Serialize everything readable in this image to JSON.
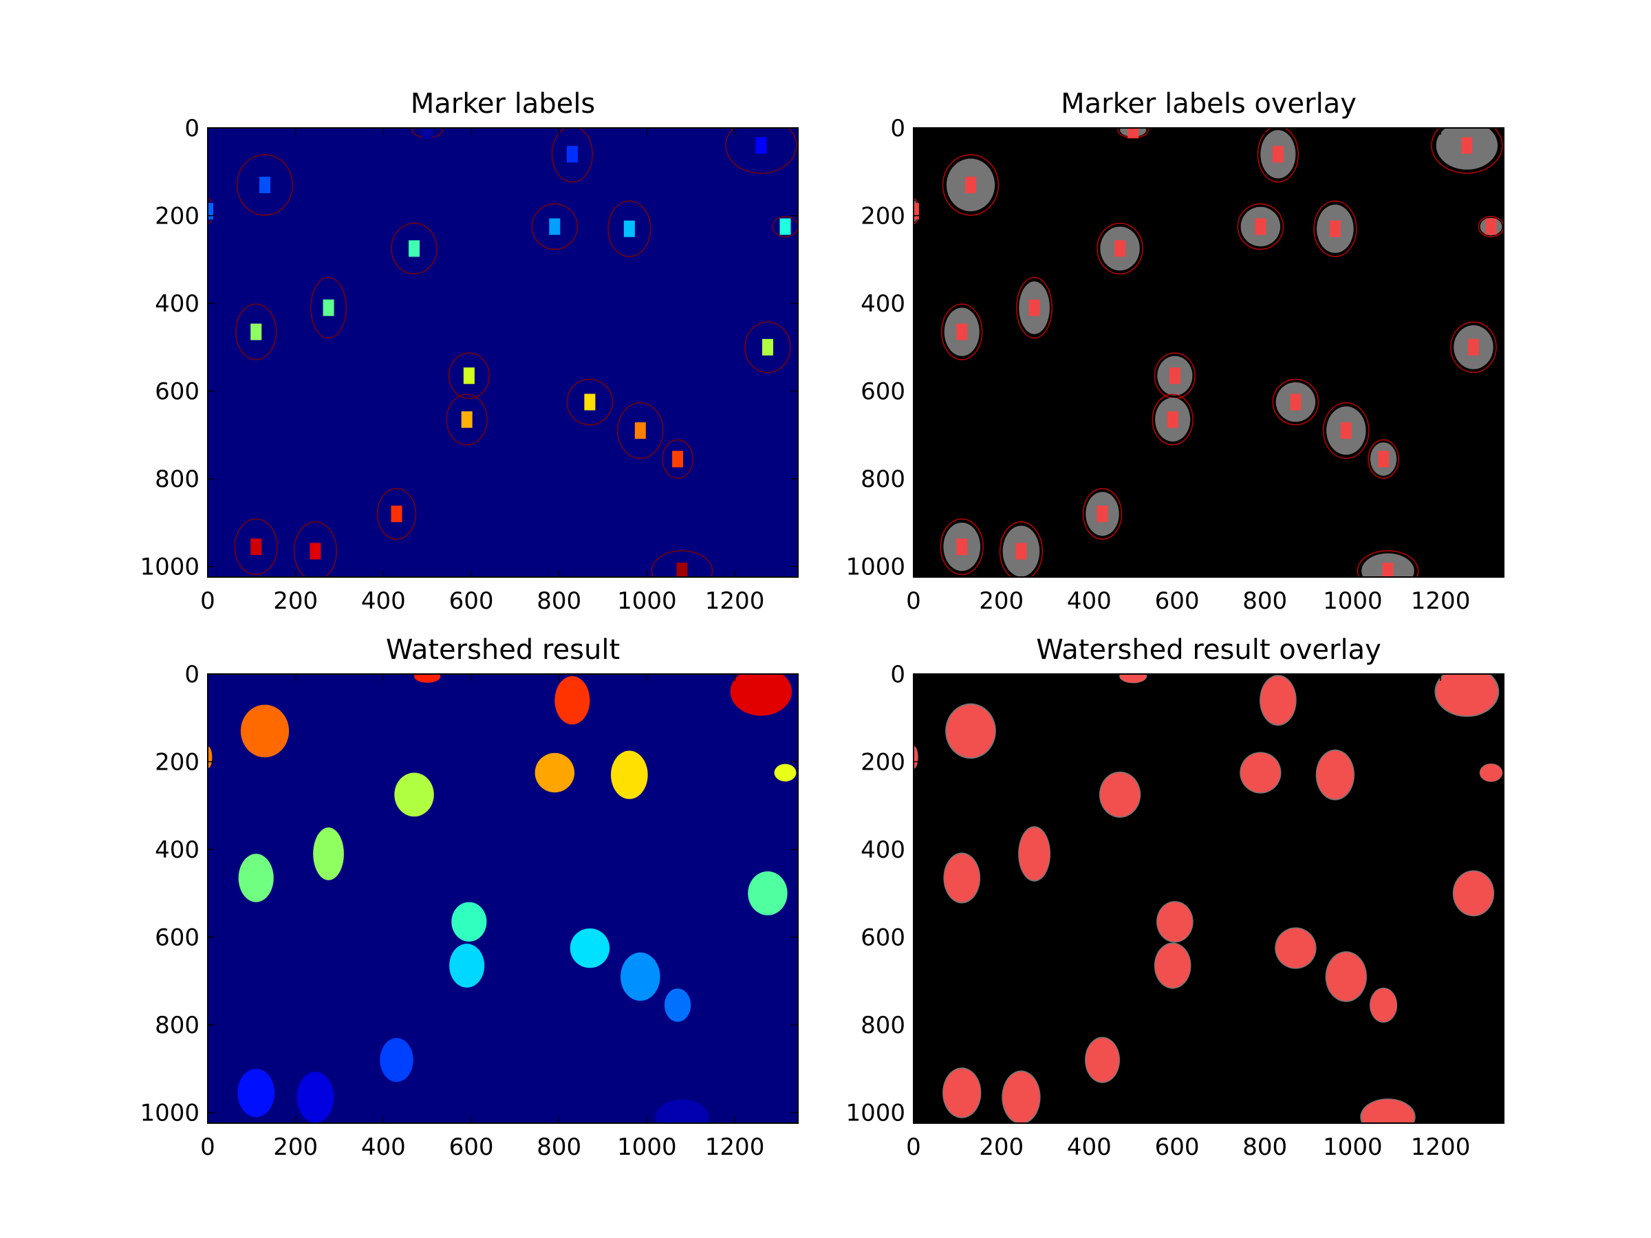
{
  "chart_data": [
    {
      "type": "image",
      "title": "Marker labels",
      "xlim": [
        0,
        1344
      ],
      "ylim": [
        1024,
        0
      ],
      "xticks": [
        0,
        200,
        400,
        600,
        800,
        1000,
        1200
      ],
      "yticks": [
        0,
        200,
        400,
        600,
        800,
        1000
      ]
    },
    {
      "type": "image",
      "title": "Marker labels overlay",
      "xlim": [
        0,
        1344
      ],
      "ylim": [
        1024,
        0
      ],
      "xticks": [
        0,
        200,
        400,
        600,
        800,
        1000,
        1200
      ],
      "yticks": [
        0,
        200,
        400,
        600,
        800,
        1000
      ]
    },
    {
      "type": "image",
      "title": "Watershed result",
      "xlim": [
        0,
        1344
      ],
      "ylim": [
        1024,
        0
      ],
      "xticks": [
        0,
        200,
        400,
        600,
        800,
        1000,
        1200
      ],
      "yticks": [
        0,
        200,
        400,
        600,
        800,
        1000
      ]
    },
    {
      "type": "image",
      "title": "Watershed result overlay",
      "xlim": [
        0,
        1344
      ],
      "ylim": [
        1024,
        0
      ],
      "xticks": [
        0,
        200,
        400,
        600,
        800,
        1000,
        1200
      ],
      "yticks": [
        0,
        200,
        400,
        600,
        800,
        1000
      ]
    }
  ]
}
